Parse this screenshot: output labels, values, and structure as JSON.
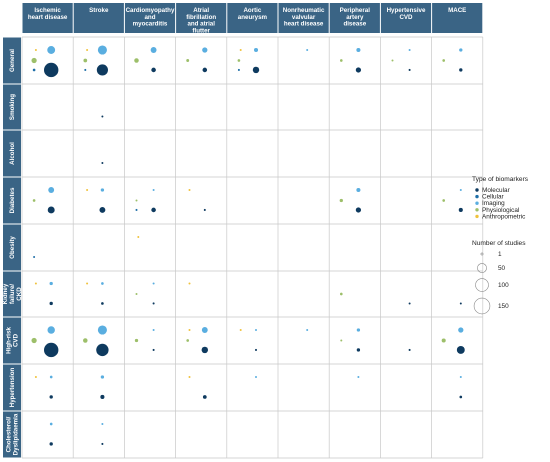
{
  "chart_data": {
    "type": "scatter",
    "title": "",
    "columns": [
      "Ischemic heart disease",
      "Stroke",
      "Cardiomyopathy and myocarditis",
      "Atrial fibrillation and atrial flutter",
      "Aortic aneurysm",
      "Nonrheumatic valvular heart disease",
      "Peripheral artery disease",
      "Hypertensive CVD",
      "MACE"
    ],
    "column_labels": [
      [
        "Ischemic",
        "heart disease"
      ],
      [
        "Stroke"
      ],
      [
        "Cardiomyopathy",
        "and",
        "myocarditis"
      ],
      [
        "Atrial",
        "fibrillation",
        "and atrial",
        "flutter"
      ],
      [
        "Aortic",
        "aneurysm"
      ],
      [
        "Nonrheumatic",
        "valvular",
        "heart disease"
      ],
      [
        "Peripheral",
        "artery",
        "disease"
      ],
      [
        "Hypertensive",
        "CVD"
      ],
      [
        "MACE"
      ]
    ],
    "rows": [
      "General",
      "Smoking",
      "Alcohol",
      "Diabetes",
      "Obesity",
      "Kidney failure/ CKD",
      "High-risk CVD",
      "Hypertension",
      "Cholesterol/ Dyslipidaemia"
    ],
    "row_labels": [
      [
        "General"
      ],
      [
        "Smoking"
      ],
      [
        "Alcohol"
      ],
      [
        "Diabetes"
      ],
      [
        "Obesity"
      ],
      [
        "Kidney",
        "failure/",
        "CKD"
      ],
      [
        "High-risk",
        "CVD"
      ],
      [
        "Hypertension"
      ],
      [
        "Cholesterol/",
        "Dyslipidaemia"
      ]
    ],
    "biomarker_types": [
      "Molecular",
      "Cellular",
      "Imaging",
      "Physiological",
      "Anthropometric"
    ],
    "colors": {
      "Molecular": "#0e3a5f",
      "Cellular": "#1f6fa8",
      "Imaging": "#5aaee0",
      "Physiological": "#9dbf6a",
      "Anthropometric": "#f0c23c",
      "header_bg": "#3a6485",
      "grid": "#c8c8c8"
    },
    "legend": {
      "type_title": "Type of biomarkers",
      "size_title": "Number of studies",
      "size_values": [
        1,
        50,
        100,
        150
      ],
      "placement": "right"
    },
    "points": [
      {
        "row": "General",
        "col": "Ischemic heart disease",
        "type": "Anthropometric",
        "n": 3
      },
      {
        "row": "General",
        "col": "Ischemic heart disease",
        "type": "Imaging",
        "n": 45
      },
      {
        "row": "General",
        "col": "Ischemic heart disease",
        "type": "Physiological",
        "n": 20
      },
      {
        "row": "General",
        "col": "Ischemic heart disease",
        "type": "Cellular",
        "n": 5
      },
      {
        "row": "General",
        "col": "Ischemic heart disease",
        "type": "Molecular",
        "n": 150
      },
      {
        "row": "General",
        "col": "Stroke",
        "type": "Anthropometric",
        "n": 3
      },
      {
        "row": "General",
        "col": "Stroke",
        "type": "Imaging",
        "n": 60
      },
      {
        "row": "General",
        "col": "Stroke",
        "type": "Physiological",
        "n": 10
      },
      {
        "row": "General",
        "col": "Stroke",
        "type": "Cellular",
        "n": 3
      },
      {
        "row": "General",
        "col": "Stroke",
        "type": "Molecular",
        "n": 90
      },
      {
        "row": "General",
        "col": "Cardiomyopathy and myocarditis",
        "type": "Imaging",
        "n": 25
      },
      {
        "row": "General",
        "col": "Cardiomyopathy and myocarditis",
        "type": "Physiological",
        "n": 15
      },
      {
        "row": "General",
        "col": "Cardiomyopathy and myocarditis",
        "type": "Molecular",
        "n": 15
      },
      {
        "row": "General",
        "col": "Atrial fibrillation and atrial flutter",
        "type": "Imaging",
        "n": 20
      },
      {
        "row": "General",
        "col": "Atrial fibrillation and atrial flutter",
        "type": "Physiological",
        "n": 6
      },
      {
        "row": "General",
        "col": "Atrial fibrillation and atrial flutter",
        "type": "Molecular",
        "n": 15
      },
      {
        "row": "General",
        "col": "Aortic aneurysm",
        "type": "Anthropometric",
        "n": 3
      },
      {
        "row": "General",
        "col": "Aortic aneurysm",
        "type": "Imaging",
        "n": 12
      },
      {
        "row": "General",
        "col": "Aortic aneurysm",
        "type": "Physiological",
        "n": 5
      },
      {
        "row": "General",
        "col": "Aortic aneurysm",
        "type": "Cellular",
        "n": 3
      },
      {
        "row": "General",
        "col": "Aortic aneurysm",
        "type": "Molecular",
        "n": 30
      },
      {
        "row": "General",
        "col": "Nonrheumatic valvular heart disease",
        "type": "Imaging",
        "n": 3
      },
      {
        "row": "General",
        "col": "Peripheral artery disease",
        "type": "Imaging",
        "n": 12
      },
      {
        "row": "General",
        "col": "Peripheral artery disease",
        "type": "Physiological",
        "n": 5
      },
      {
        "row": "General",
        "col": "Peripheral artery disease",
        "type": "Molecular",
        "n": 20
      },
      {
        "row": "General",
        "col": "Hypertensive CVD",
        "type": "Imaging",
        "n": 3
      },
      {
        "row": "General",
        "col": "Hypertensive CVD",
        "type": "Physiological",
        "n": 3
      },
      {
        "row": "General",
        "col": "Hypertensive CVD",
        "type": "Molecular",
        "n": 3
      },
      {
        "row": "General",
        "col": "MACE",
        "type": "Imaging",
        "n": 8
      },
      {
        "row": "General",
        "col": "MACE",
        "type": "Physiological",
        "n": 5
      },
      {
        "row": "General",
        "col": "MACE",
        "type": "Molecular",
        "n": 8
      },
      {
        "row": "Smoking",
        "col": "Stroke",
        "type": "Molecular",
        "n": 2
      },
      {
        "row": "Alcohol",
        "col": "Stroke",
        "type": "Molecular",
        "n": 2
      },
      {
        "row": "Diabetes",
        "col": "Ischemic heart disease",
        "type": "Imaging",
        "n": 25
      },
      {
        "row": "Diabetes",
        "col": "Ischemic heart disease",
        "type": "Physiological",
        "n": 5
      },
      {
        "row": "Diabetes",
        "col": "Ischemic heart disease",
        "type": "Molecular",
        "n": 35
      },
      {
        "row": "Diabetes",
        "col": "Stroke",
        "type": "Imaging",
        "n": 8
      },
      {
        "row": "Diabetes",
        "col": "Stroke",
        "type": "Anthropometric",
        "n": 3
      },
      {
        "row": "Diabetes",
        "col": "Stroke",
        "type": "Molecular",
        "n": 25
      },
      {
        "row": "Diabetes",
        "col": "Cardiomyopathy and myocarditis",
        "type": "Imaging",
        "n": 3
      },
      {
        "row": "Diabetes",
        "col": "Cardiomyopathy and myocarditis",
        "type": "Physiological",
        "n": 3
      },
      {
        "row": "Diabetes",
        "col": "Cardiomyopathy and myocarditis",
        "type": "Cellular",
        "n": 3
      },
      {
        "row": "Diabetes",
        "col": "Cardiomyopathy and myocarditis",
        "type": "Molecular",
        "n": 15
      },
      {
        "row": "Diabetes",
        "col": "Atrial fibrillation and atrial flutter",
        "type": "Anthropometric",
        "n": 3
      },
      {
        "row": "Diabetes",
        "col": "Atrial fibrillation and atrial flutter",
        "type": "Molecular",
        "n": 3
      },
      {
        "row": "Diabetes",
        "col": "Peripheral artery disease",
        "type": "Imaging",
        "n": 12
      },
      {
        "row": "Diabetes",
        "col": "Peripheral artery disease",
        "type": "Physiological",
        "n": 8
      },
      {
        "row": "Diabetes",
        "col": "Peripheral artery disease",
        "type": "Molecular",
        "n": 20
      },
      {
        "row": "Diabetes",
        "col": "MACE",
        "type": "Imaging",
        "n": 3
      },
      {
        "row": "Diabetes",
        "col": "MACE",
        "type": "Physiological",
        "n": 5
      },
      {
        "row": "Diabetes",
        "col": "MACE",
        "type": "Molecular",
        "n": 12
      },
      {
        "row": "Obesity",
        "col": "Ischemic heart disease",
        "type": "Cellular",
        "n": 2
      },
      {
        "row": "Obesity",
        "col": "Cardiomyopathy and myocarditis",
        "type": "Anthropometric",
        "n": 2
      },
      {
        "row": "Kidney failure/ CKD",
        "col": "Ischemic heart disease",
        "type": "Imaging",
        "n": 8
      },
      {
        "row": "Kidney failure/ CKD",
        "col": "Ischemic heart disease",
        "type": "Anthropometric",
        "n": 3
      },
      {
        "row": "Kidney failure/ CKD",
        "col": "Ischemic heart disease",
        "type": "Molecular",
        "n": 8
      },
      {
        "row": "Kidney failure/ CKD",
        "col": "Stroke",
        "type": "Imaging",
        "n": 5
      },
      {
        "row": "Kidney failure/ CKD",
        "col": "Stroke",
        "type": "Anthropometric",
        "n": 3
      },
      {
        "row": "Kidney failure/ CKD",
        "col": "Stroke",
        "type": "Molecular",
        "n": 5
      },
      {
        "row": "Kidney failure/ CKD",
        "col": "Cardiomyopathy and myocarditis",
        "type": "Imaging",
        "n": 3
      },
      {
        "row": "Kidney failure/ CKD",
        "col": "Cardiomyopathy and myocarditis",
        "type": "Physiological",
        "n": 3
      },
      {
        "row": "Kidney failure/ CKD",
        "col": "Cardiomyopathy and myocarditis",
        "type": "Molecular",
        "n": 3
      },
      {
        "row": "Kidney failure/ CKD",
        "col": "Atrial fibrillation and atrial flutter",
        "type": "Anthropometric",
        "n": 3
      },
      {
        "row": "Kidney failure/ CKD",
        "col": "Peripheral artery disease",
        "type": "Physiological",
        "n": 5
      },
      {
        "row": "Kidney failure/ CKD",
        "col": "Hypertensive CVD",
        "type": "Molecular",
        "n": 2
      },
      {
        "row": "Kidney failure/ CKD",
        "col": "MACE",
        "type": "Molecular",
        "n": 2
      },
      {
        "row": "High-risk CVD",
        "col": "Ischemic heart disease",
        "type": "Imaging",
        "n": 40
      },
      {
        "row": "High-risk CVD",
        "col": "Ischemic heart disease",
        "type": "Physiological",
        "n": 20
      },
      {
        "row": "High-risk CVD",
        "col": "Ischemic heart disease",
        "type": "Molecular",
        "n": 150
      },
      {
        "row": "High-risk CVD",
        "col": "Stroke",
        "type": "Imaging",
        "n": 60
      },
      {
        "row": "High-risk CVD",
        "col": "Stroke",
        "type": "Physiological",
        "n": 15
      },
      {
        "row": "High-risk CVD",
        "col": "Stroke",
        "type": "Molecular",
        "n": 110
      },
      {
        "row": "High-risk CVD",
        "col": "Cardiomyopathy and myocarditis",
        "type": "Imaging",
        "n": 3
      },
      {
        "row": "High-risk CVD",
        "col": "Cardiomyopathy and myocarditis",
        "type": "Physiological",
        "n": 8
      },
      {
        "row": "High-risk CVD",
        "col": "Cardiomyopathy and myocarditis",
        "type": "Molecular",
        "n": 3
      },
      {
        "row": "High-risk CVD",
        "col": "Atrial fibrillation and atrial flutter",
        "type": "Anthropometric",
        "n": 3
      },
      {
        "row": "High-risk CVD",
        "col": "Atrial fibrillation and atrial flutter",
        "type": "Imaging",
        "n": 25
      },
      {
        "row": "High-risk CVD",
        "col": "Atrial fibrillation and atrial flutter",
        "type": "Physiological",
        "n": 5
      },
      {
        "row": "High-risk CVD",
        "col": "Atrial fibrillation and atrial flutter",
        "type": "Molecular",
        "n": 30
      },
      {
        "row": "High-risk CVD",
        "col": "Aortic aneurysm",
        "type": "Imaging",
        "n": 3
      },
      {
        "row": "High-risk CVD",
        "col": "Aortic aneurysm",
        "type": "Anthropometric",
        "n": 3
      },
      {
        "row": "High-risk CVD",
        "col": "Aortic aneurysm",
        "type": "Molecular",
        "n": 3
      },
      {
        "row": "High-risk CVD",
        "col": "Nonrheumatic valvular heart disease",
        "type": "Imaging",
        "n": 3
      },
      {
        "row": "High-risk CVD",
        "col": "Peripheral artery disease",
        "type": "Imaging",
        "n": 8
      },
      {
        "row": "High-risk CVD",
        "col": "Peripheral artery disease",
        "type": "Physiological",
        "n": 3
      },
      {
        "row": "High-risk CVD",
        "col": "Peripheral artery disease",
        "type": "Molecular",
        "n": 8
      },
      {
        "row": "High-risk CVD",
        "col": "Hypertensive CVD",
        "type": "Molecular",
        "n": 3
      },
      {
        "row": "High-risk CVD",
        "col": "MACE",
        "type": "Imaging",
        "n": 20
      },
      {
        "row": "High-risk CVD",
        "col": "MACE",
        "type": "Physiological",
        "n": 12
      },
      {
        "row": "High-risk CVD",
        "col": "MACE",
        "type": "Molecular",
        "n": 45
      },
      {
        "row": "Hypertension",
        "col": "Ischemic heart disease",
        "type": "Imaging",
        "n": 5
      },
      {
        "row": "Hypertension",
        "col": "Ischemic heart disease",
        "type": "Anthropometric",
        "n": 3
      },
      {
        "row": "Hypertension",
        "col": "Ischemic heart disease",
        "type": "Molecular",
        "n": 8
      },
      {
        "row": "Hypertension",
        "col": "Stroke",
        "type": "Imaging",
        "n": 8
      },
      {
        "row": "Hypertension",
        "col": "Stroke",
        "type": "Molecular",
        "n": 12
      },
      {
        "row": "Hypertension",
        "col": "Atrial fibrillation and atrial flutter",
        "type": "Anthropometric",
        "n": 3
      },
      {
        "row": "Hypertension",
        "col": "Atrial fibrillation and atrial flutter",
        "type": "Molecular",
        "n": 10
      },
      {
        "row": "Hypertension",
        "col": "Aortic aneurysm",
        "type": "Imaging",
        "n": 3
      },
      {
        "row": "Hypertension",
        "col": "Peripheral artery disease",
        "type": "Imaging",
        "n": 3
      },
      {
        "row": "Hypertension",
        "col": "MACE",
        "type": "Imaging",
        "n": 3
      },
      {
        "row": "Hypertension",
        "col": "MACE",
        "type": "Molecular",
        "n": 5
      },
      {
        "row": "Cholesterol/ Dyslipidaemia",
        "col": "Ischemic heart disease",
        "type": "Imaging",
        "n": 5
      },
      {
        "row": "Cholesterol/ Dyslipidaemia",
        "col": "Ischemic heart disease",
        "type": "Molecular",
        "n": 8
      },
      {
        "row": "Cholesterol/ Dyslipidaemia",
        "col": "Stroke",
        "type": "Imaging",
        "n": 3
      },
      {
        "row": "Cholesterol/ Dyslipidaemia",
        "col": "Stroke",
        "type": "Molecular",
        "n": 3
      }
    ]
  }
}
